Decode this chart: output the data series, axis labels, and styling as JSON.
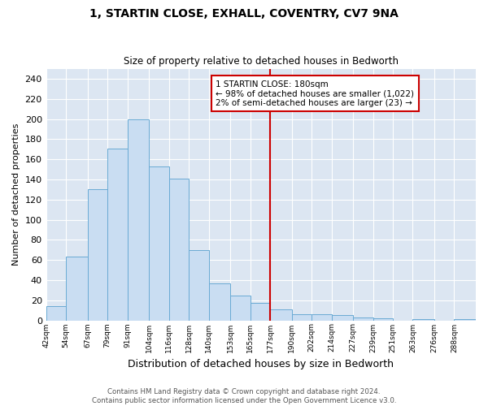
{
  "title": "1, STARTIN CLOSE, EXHALL, COVENTRY, CV7 9NA",
  "subtitle": "Size of property relative to detached houses in Bedworth",
  "xlabel": "Distribution of detached houses by size in Bedworth",
  "ylabel": "Number of detached properties",
  "bin_labels": [
    "42sqm",
    "54sqm",
    "67sqm",
    "79sqm",
    "91sqm",
    "104sqm",
    "116sqm",
    "128sqm",
    "140sqm",
    "153sqm",
    "165sqm",
    "177sqm",
    "190sqm",
    "202sqm",
    "214sqm",
    "227sqm",
    "239sqm",
    "251sqm",
    "263sqm",
    "276sqm",
    "288sqm"
  ],
  "bin_edges": [
    42,
    54,
    67,
    79,
    91,
    104,
    116,
    128,
    140,
    153,
    165,
    177,
    190,
    202,
    214,
    227,
    239,
    251,
    263,
    276,
    288,
    301
  ],
  "bar_heights": [
    14,
    63,
    130,
    171,
    200,
    153,
    141,
    70,
    37,
    25,
    17,
    11,
    6,
    6,
    5,
    3,
    2,
    0,
    1,
    0,
    1
  ],
  "bar_color": "#c9ddf2",
  "bar_edge_color": "#6aaad4",
  "vline_x": 177,
  "vline_color": "#cc0000",
  "annotation_title": "1 STARTIN CLOSE: 180sqm",
  "annotation_line1": "← 98% of detached houses are smaller (1,022)",
  "annotation_line2": "2% of semi-detached houses are larger (23) →",
  "annotation_box_color": "#cc0000",
  "ylim": [
    0,
    250
  ],
  "yticks": [
    0,
    20,
    40,
    60,
    80,
    100,
    120,
    140,
    160,
    180,
    200,
    220,
    240
  ],
  "footer_line1": "Contains HM Land Registry data © Crown copyright and database right 2024.",
  "footer_line2": "Contains public sector information licensed under the Open Government Licence v3.0.",
  "bg_color": "#dce6f2",
  "title_fontsize": 10,
  "subtitle_fontsize": 8.5,
  "xlabel_fontsize": 9,
  "ylabel_fontsize": 8
}
